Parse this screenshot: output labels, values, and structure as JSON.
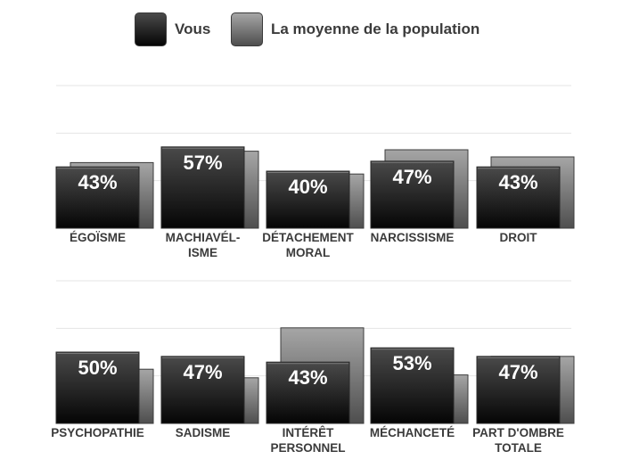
{
  "legend": {
    "you_label": "Vous",
    "average_label": "La moyenne de la population"
  },
  "colors": {
    "you_top": "#4a4a4a",
    "you_bottom": "#050505",
    "average_top": "#a6a6a6",
    "average_bottom": "#4e4e4e",
    "value_text": "#ffffff",
    "label_text": "#3b3b3b",
    "gridline": "#e4e4e4"
  },
  "chart_data": [
    {
      "type": "bar",
      "categories": [
        "ÉGOÏSME",
        "MACHIAVÉL-ISME",
        "DÉTACHEMENT MORAL",
        "NARCISSISME",
        "DROIT"
      ],
      "category_lines": [
        [
          "ÉGOÏSME"
        ],
        [
          "MACHIAVÉL-",
          "ISME"
        ],
        [
          "DÉTACHEMENT",
          "MORAL"
        ],
        [
          "NARCISSISME"
        ],
        [
          "DROIT"
        ]
      ],
      "series": [
        {
          "name": "Vous",
          "values": [
            43,
            57,
            40,
            47,
            43
          ]
        },
        {
          "name": "La moyenne de la population",
          "values": [
            46,
            54,
            38,
            55,
            50
          ]
        }
      ],
      "data_labels": [
        "43%",
        "57%",
        "40%",
        "47%",
        "43%"
      ],
      "ylim": [
        0,
        100
      ],
      "grid": true,
      "legend_position": "top-center"
    },
    {
      "type": "bar",
      "categories": [
        "PSYCHOPATHIE",
        "SADISME",
        "INTÉRÊT PERSONNEL",
        "MÉCHANCETÉ",
        "PART D'OMBRE TOTALE"
      ],
      "category_lines": [
        [
          "PSYCHOPATHIE"
        ],
        [
          "SADISME"
        ],
        [
          "INTÉRÊT",
          "PERSONNEL"
        ],
        [
          "MÉCHANCETÉ"
        ],
        [
          "PART D'OMBRE",
          "TOTALE"
        ]
      ],
      "series": [
        {
          "name": "Vous",
          "values": [
            50,
            47,
            43,
            53,
            47
          ]
        },
        {
          "name": "La moyenne de la population",
          "values": [
            38,
            32,
            67,
            34,
            47
          ]
        }
      ],
      "data_labels": [
        "50%",
        "47%",
        "43%",
        "53%",
        "47%"
      ],
      "ylim": [
        0,
        100
      ],
      "grid": true,
      "legend_position": "top-center"
    }
  ]
}
